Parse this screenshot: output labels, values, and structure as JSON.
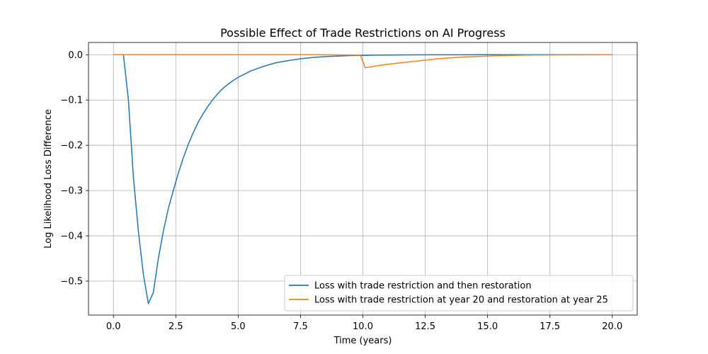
{
  "chart_data": {
    "type": "line",
    "title": "Possible Effect of Trade Restrictions on AI Progress",
    "xlabel": "Time (years)",
    "ylabel": "Log Likelihood Loss Difference",
    "xlim": [
      -1.0,
      21.0
    ],
    "ylim": [
      -0.575,
      0.027
    ],
    "xticks": [
      0.0,
      2.5,
      5.0,
      7.5,
      10.0,
      12.5,
      15.0,
      17.5,
      20.0
    ],
    "xtick_labels": [
      "0.0",
      "2.5",
      "5.0",
      "7.5",
      "10.0",
      "12.5",
      "15.0",
      "17.5",
      "20.0"
    ],
    "yticks": [
      0.0,
      -0.1,
      -0.2,
      -0.3,
      -0.4,
      -0.5
    ],
    "ytick_labels": [
      "0.0",
      "−0.1",
      "−0.2",
      "−0.3",
      "−0.4",
      "−0.5"
    ],
    "grid": true,
    "legend_position": "bottom-right",
    "series": [
      {
        "name": "Loss with trade restriction and then restoration",
        "color": "#1f77b4",
        "x": [
          0,
          0.2,
          0.4,
          0.6,
          0.8,
          1.0,
          1.2,
          1.4,
          1.6,
          1.8,
          2.0,
          2.2,
          2.4,
          2.6,
          2.8,
          3.0,
          3.2,
          3.4,
          3.6,
          3.8,
          4.0,
          4.2,
          4.4,
          4.6,
          4.8,
          5.0,
          5.5,
          6.0,
          6.5,
          7.0,
          7.5,
          8.0,
          8.5,
          9.0,
          9.5,
          10.0,
          10.5,
          11.0,
          12.0,
          13.0,
          14.0,
          15.0,
          16.0,
          17.0,
          18.0,
          19.0,
          20.0
        ],
        "y": [
          0,
          0,
          0,
          -0.1,
          -0.27,
          -0.39,
          -0.485,
          -0.55,
          -0.525,
          -0.45,
          -0.39,
          -0.34,
          -0.3,
          -0.262,
          -0.228,
          -0.198,
          -0.172,
          -0.149,
          -0.13,
          -0.113,
          -0.098,
          -0.085,
          -0.074,
          -0.065,
          -0.057,
          -0.05,
          -0.036,
          -0.026,
          -0.018,
          -0.013,
          -0.009,
          -0.006,
          -0.004,
          -0.003,
          -0.002,
          -0.0015,
          -0.001,
          -0.0007,
          -0.0004,
          -0.0002,
          -0.0001,
          -5e-05,
          0,
          0,
          0,
          0,
          0
        ]
      },
      {
        "name": "Loss with trade restriction at year 20 and restoration at year 25",
        "color": "#ff7f0e",
        "x": [
          0,
          2,
          4,
          6,
          8,
          9.9,
          10.1,
          10.5,
          11.0,
          11.5,
          12.0,
          12.5,
          13.0,
          13.5,
          14.0,
          14.5,
          15.0,
          15.5,
          16.0,
          16.5,
          17.0,
          18.0,
          19.0,
          20.0
        ],
        "y": [
          0,
          0,
          0,
          0,
          0,
          -0.001,
          -0.029,
          -0.025,
          -0.021,
          -0.018,
          -0.015,
          -0.012,
          -0.009,
          -0.007,
          -0.005,
          -0.004,
          -0.003,
          -0.002,
          -0.0015,
          -0.001,
          -0.0007,
          -0.0003,
          -0.0001,
          0
        ]
      }
    ]
  }
}
